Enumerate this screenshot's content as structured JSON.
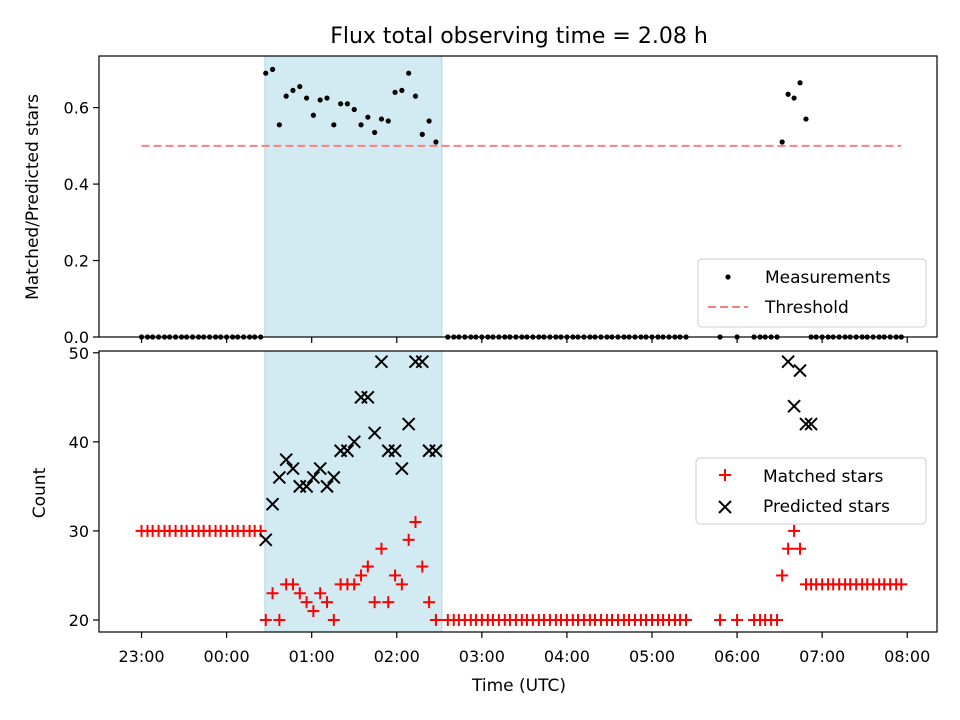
{
  "chart_data": {
    "title": "Flux total observing time = 2.08 h",
    "xlabel": "Time (UTC)",
    "x_unit": "hours UTC (23 = 23:00 of previous day, 32 = 08:00)",
    "x_range": [
      22.5,
      32.35
    ],
    "x_ticks": [
      23,
      24,
      25,
      26,
      27,
      28,
      29,
      30,
      31,
      32
    ],
    "x_tick_labels": [
      "23:00",
      "00:00",
      "01:00",
      "02:00",
      "03:00",
      "04:00",
      "05:00",
      "06:00",
      "07:00",
      "08:00"
    ],
    "observing_span": [
      24.45,
      26.53
    ],
    "top": {
      "type": "scatter",
      "ylabel": "Matched/Predicted stars",
      "ylim": [
        0,
        0.735
      ],
      "y_ticks": [
        0.0,
        0.2,
        0.4,
        0.6
      ],
      "y_tick_labels": [
        "0.0",
        "0.2",
        "0.4",
        "0.6"
      ],
      "threshold": 0.5,
      "threshold_x": [
        23.0,
        31.93
      ],
      "legend": [
        "Measurements",
        "Threshold"
      ],
      "colors": {
        "measurements": "#000000",
        "threshold": "#ff7f7f",
        "span": "#add8e6"
      },
      "points": [
        [
          23.0,
          0
        ],
        [
          23.07,
          0
        ],
        [
          23.13,
          0
        ],
        [
          23.2,
          0
        ],
        [
          23.27,
          0
        ],
        [
          23.33,
          0
        ],
        [
          23.4,
          0
        ],
        [
          23.47,
          0
        ],
        [
          23.53,
          0
        ],
        [
          23.6,
          0
        ],
        [
          23.67,
          0
        ],
        [
          23.73,
          0
        ],
        [
          23.8,
          0
        ],
        [
          23.87,
          0
        ],
        [
          23.93,
          0
        ],
        [
          24.0,
          0
        ],
        [
          24.07,
          0
        ],
        [
          24.13,
          0
        ],
        [
          24.2,
          0
        ],
        [
          24.27,
          0
        ],
        [
          24.33,
          0
        ],
        [
          24.4,
          0
        ],
        [
          24.46,
          0.69
        ],
        [
          24.54,
          0.7
        ],
        [
          24.62,
          0.555
        ],
        [
          24.7,
          0.63
        ],
        [
          24.78,
          0.645
        ],
        [
          24.86,
          0.655
        ],
        [
          24.94,
          0.625
        ],
        [
          25.02,
          0.58
        ],
        [
          25.1,
          0.62
        ],
        [
          25.18,
          0.625
        ],
        [
          25.26,
          0.555
        ],
        [
          25.34,
          0.61
        ],
        [
          25.42,
          0.61
        ],
        [
          25.5,
          0.595
        ],
        [
          25.58,
          0.555
        ],
        [
          25.66,
          0.575
        ],
        [
          25.74,
          0.535
        ],
        [
          25.82,
          0.57
        ],
        [
          25.9,
          0.565
        ],
        [
          25.98,
          0.64
        ],
        [
          26.06,
          0.645
        ],
        [
          26.14,
          0.69
        ],
        [
          26.22,
          0.63
        ],
        [
          26.3,
          0.53
        ],
        [
          26.38,
          0.565
        ],
        [
          26.46,
          0.51
        ],
        [
          26.6,
          0
        ],
        [
          26.67,
          0
        ],
        [
          26.73,
          0
        ],
        [
          26.8,
          0
        ],
        [
          26.87,
          0
        ],
        [
          26.93,
          0
        ],
        [
          27.0,
          0
        ],
        [
          27.07,
          0
        ],
        [
          27.13,
          0
        ],
        [
          27.2,
          0
        ],
        [
          27.27,
          0
        ],
        [
          27.33,
          0
        ],
        [
          27.4,
          0
        ],
        [
          27.47,
          0
        ],
        [
          27.53,
          0
        ],
        [
          27.6,
          0
        ],
        [
          27.67,
          0
        ],
        [
          27.73,
          0
        ],
        [
          27.8,
          0
        ],
        [
          27.87,
          0
        ],
        [
          27.93,
          0
        ],
        [
          28.0,
          0
        ],
        [
          28.07,
          0
        ],
        [
          28.13,
          0
        ],
        [
          28.2,
          0
        ],
        [
          28.27,
          0
        ],
        [
          28.33,
          0
        ],
        [
          28.4,
          0
        ],
        [
          28.47,
          0
        ],
        [
          28.53,
          0
        ],
        [
          28.6,
          0
        ],
        [
          28.67,
          0
        ],
        [
          28.73,
          0
        ],
        [
          28.8,
          0
        ],
        [
          28.87,
          0
        ],
        [
          28.93,
          0
        ],
        [
          29.0,
          0
        ],
        [
          29.07,
          0
        ],
        [
          29.13,
          0
        ],
        [
          29.2,
          0
        ],
        [
          29.27,
          0
        ],
        [
          29.33,
          0
        ],
        [
          29.4,
          0
        ],
        [
          29.8,
          0
        ],
        [
          30.0,
          0
        ],
        [
          30.2,
          0
        ],
        [
          30.27,
          0
        ],
        [
          30.33,
          0
        ],
        [
          30.4,
          0
        ],
        [
          30.47,
          0
        ],
        [
          30.53,
          0.51
        ],
        [
          30.6,
          0.635
        ],
        [
          30.67,
          0.625
        ],
        [
          30.74,
          0.665
        ],
        [
          30.81,
          0.57
        ],
        [
          30.87,
          0
        ],
        [
          30.93,
          0
        ],
        [
          31.0,
          0
        ],
        [
          31.07,
          0
        ],
        [
          31.13,
          0
        ],
        [
          31.2,
          0
        ],
        [
          31.27,
          0
        ],
        [
          31.33,
          0
        ],
        [
          31.4,
          0
        ],
        [
          31.47,
          0
        ],
        [
          31.53,
          0
        ],
        [
          31.6,
          0
        ],
        [
          31.67,
          0
        ],
        [
          31.73,
          0
        ],
        [
          31.8,
          0
        ],
        [
          31.87,
          0
        ],
        [
          31.93,
          0
        ]
      ]
    },
    "bottom": {
      "type": "scatter",
      "ylabel": "Count",
      "ylim": [
        18.65,
        50.2
      ],
      "y_ticks": [
        20,
        30,
        40,
        50
      ],
      "y_tick_labels": [
        "20",
        "30",
        "40",
        "50"
      ],
      "legend": [
        "Matched stars",
        "Predicted stars"
      ],
      "colors": {
        "matched": "#ff0000",
        "predicted": "#000000"
      },
      "matched": [
        [
          23.0,
          30
        ],
        [
          23.07,
          30
        ],
        [
          23.13,
          30
        ],
        [
          23.2,
          30
        ],
        [
          23.27,
          30
        ],
        [
          23.33,
          30
        ],
        [
          23.4,
          30
        ],
        [
          23.47,
          30
        ],
        [
          23.53,
          30
        ],
        [
          23.6,
          30
        ],
        [
          23.67,
          30
        ],
        [
          23.73,
          30
        ],
        [
          23.8,
          30
        ],
        [
          23.87,
          30
        ],
        [
          23.93,
          30
        ],
        [
          24.0,
          30
        ],
        [
          24.07,
          30
        ],
        [
          24.13,
          30
        ],
        [
          24.2,
          30
        ],
        [
          24.27,
          30
        ],
        [
          24.33,
          30
        ],
        [
          24.4,
          30
        ],
        [
          24.46,
          20
        ],
        [
          24.54,
          23
        ],
        [
          24.62,
          20
        ],
        [
          24.7,
          24
        ],
        [
          24.78,
          24
        ],
        [
          24.86,
          23
        ],
        [
          24.94,
          22
        ],
        [
          25.02,
          21
        ],
        [
          25.1,
          23
        ],
        [
          25.18,
          22
        ],
        [
          25.26,
          20
        ],
        [
          25.34,
          24
        ],
        [
          25.42,
          24
        ],
        [
          25.5,
          24
        ],
        [
          25.58,
          25
        ],
        [
          25.66,
          26
        ],
        [
          25.74,
          22
        ],
        [
          25.82,
          28
        ],
        [
          25.9,
          22
        ],
        [
          25.98,
          25
        ],
        [
          26.06,
          24
        ],
        [
          26.14,
          29
        ],
        [
          26.22,
          31
        ],
        [
          26.3,
          26
        ],
        [
          26.38,
          22
        ],
        [
          26.46,
          20
        ],
        [
          26.6,
          20
        ],
        [
          26.67,
          20
        ],
        [
          26.73,
          20
        ],
        [
          26.8,
          20
        ],
        [
          26.87,
          20
        ],
        [
          26.93,
          20
        ],
        [
          27.0,
          20
        ],
        [
          27.07,
          20
        ],
        [
          27.13,
          20
        ],
        [
          27.2,
          20
        ],
        [
          27.27,
          20
        ],
        [
          27.33,
          20
        ],
        [
          27.4,
          20
        ],
        [
          27.47,
          20
        ],
        [
          27.53,
          20
        ],
        [
          27.6,
          20
        ],
        [
          27.67,
          20
        ],
        [
          27.73,
          20
        ],
        [
          27.8,
          20
        ],
        [
          27.87,
          20
        ],
        [
          27.93,
          20
        ],
        [
          28.0,
          20
        ],
        [
          28.07,
          20
        ],
        [
          28.13,
          20
        ],
        [
          28.2,
          20
        ],
        [
          28.27,
          20
        ],
        [
          28.33,
          20
        ],
        [
          28.4,
          20
        ],
        [
          28.47,
          20
        ],
        [
          28.53,
          20
        ],
        [
          28.6,
          20
        ],
        [
          28.67,
          20
        ],
        [
          28.73,
          20
        ],
        [
          28.8,
          20
        ],
        [
          28.87,
          20
        ],
        [
          28.93,
          20
        ],
        [
          29.0,
          20
        ],
        [
          29.07,
          20
        ],
        [
          29.13,
          20
        ],
        [
          29.2,
          20
        ],
        [
          29.27,
          20
        ],
        [
          29.33,
          20
        ],
        [
          29.4,
          20
        ],
        [
          29.8,
          20
        ],
        [
          30.0,
          20
        ],
        [
          30.2,
          20
        ],
        [
          30.27,
          20
        ],
        [
          30.33,
          20
        ],
        [
          30.4,
          20
        ],
        [
          30.47,
          20
        ],
        [
          30.53,
          25
        ],
        [
          30.6,
          28
        ],
        [
          30.67,
          30
        ],
        [
          30.74,
          28
        ],
        [
          30.81,
          24
        ],
        [
          30.87,
          24
        ],
        [
          30.93,
          24
        ],
        [
          31.0,
          24
        ],
        [
          31.07,
          24
        ],
        [
          31.13,
          24
        ],
        [
          31.2,
          24
        ],
        [
          31.27,
          24
        ],
        [
          31.33,
          24
        ],
        [
          31.4,
          24
        ],
        [
          31.47,
          24
        ],
        [
          31.53,
          24
        ],
        [
          31.6,
          24
        ],
        [
          31.67,
          24
        ],
        [
          31.73,
          24
        ],
        [
          31.8,
          24
        ],
        [
          31.87,
          24
        ],
        [
          31.93,
          24
        ]
      ],
      "predicted": [
        [
          24.46,
          29
        ],
        [
          24.54,
          33
        ],
        [
          24.62,
          36
        ],
        [
          24.7,
          38
        ],
        [
          24.78,
          37
        ],
        [
          24.86,
          35
        ],
        [
          24.94,
          35
        ],
        [
          25.02,
          36
        ],
        [
          25.1,
          37
        ],
        [
          25.18,
          35
        ],
        [
          25.26,
          36
        ],
        [
          25.34,
          39
        ],
        [
          25.42,
          39
        ],
        [
          25.5,
          40
        ],
        [
          25.58,
          45
        ],
        [
          25.66,
          45
        ],
        [
          25.74,
          41
        ],
        [
          25.82,
          49
        ],
        [
          25.9,
          39
        ],
        [
          25.98,
          39
        ],
        [
          26.06,
          37
        ],
        [
          26.14,
          42
        ],
        [
          26.22,
          49
        ],
        [
          26.3,
          49
        ],
        [
          26.38,
          39
        ],
        [
          26.46,
          39
        ],
        [
          30.6,
          49
        ],
        [
          30.67,
          44
        ],
        [
          30.74,
          48
        ],
        [
          30.81,
          42
        ],
        [
          30.87,
          42
        ]
      ]
    }
  }
}
